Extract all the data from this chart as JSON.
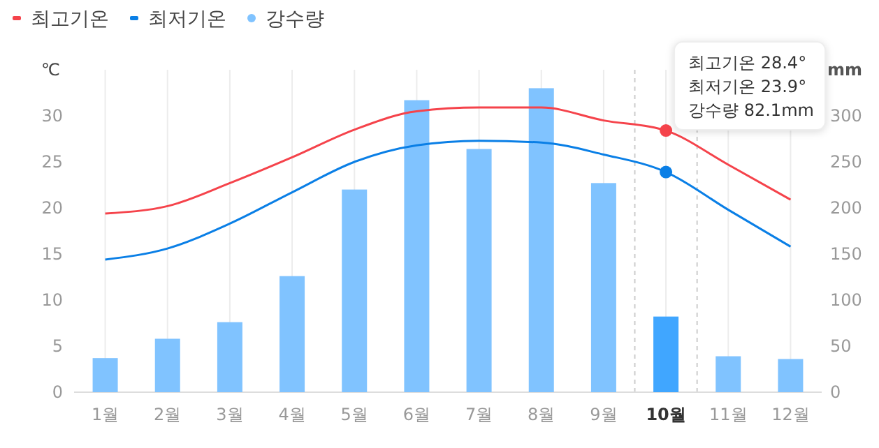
{
  "chart_data": {
    "type": "bar",
    "categories": [
      "1월",
      "2월",
      "3월",
      "4월",
      "5월",
      "6월",
      "7월",
      "8월",
      "9월",
      "10월",
      "11월",
      "12월"
    ],
    "ylabel": "℃",
    "y2label": "mm",
    "ylim": [
      0,
      35
    ],
    "yticks": [
      0,
      5,
      10,
      15,
      20,
      25,
      30
    ],
    "y2lim": [
      0,
      350
    ],
    "y2ticks": [
      0,
      50,
      100,
      150,
      200,
      250,
      300
    ],
    "grid": "x",
    "legend": "top left",
    "marker": "none",
    "line_style": "solid",
    "series": [
      {
        "name": "최고기온",
        "type": "line",
        "color": "#f5434b",
        "values": [
          19.4,
          20.2,
          22.7,
          25.5,
          28.5,
          30.5,
          30.9,
          30.9,
          29.5,
          28.4,
          24.7,
          20.9
        ]
      },
      {
        "name": "최저기온",
        "type": "line",
        "color": "#0a7fe6",
        "values": [
          14.4,
          15.6,
          18.3,
          21.7,
          25.0,
          26.8,
          27.3,
          27.1,
          25.8,
          23.9,
          19.8,
          15.8
        ]
      },
      {
        "name": "강수량",
        "axis": "y2",
        "color": "#80c3ff",
        "colors": [
          "#80c3ff",
          "#80c3ff",
          "#80c3ff",
          "#80c3ff",
          "#80c3ff",
          "#80c3ff",
          "#80c3ff",
          "#80c3ff",
          "#80c3ff",
          "#40a6ff",
          "#80c3ff",
          "#80c3ff"
        ],
        "values": [
          37,
          58,
          76,
          126,
          220,
          317,
          264,
          330,
          227,
          82.1,
          39,
          36
        ]
      }
    ],
    "annotations": [
      "최고기온 28.4°",
      "최저기온 23.9°",
      "강수량 82.1mm"
    ]
  }
}
